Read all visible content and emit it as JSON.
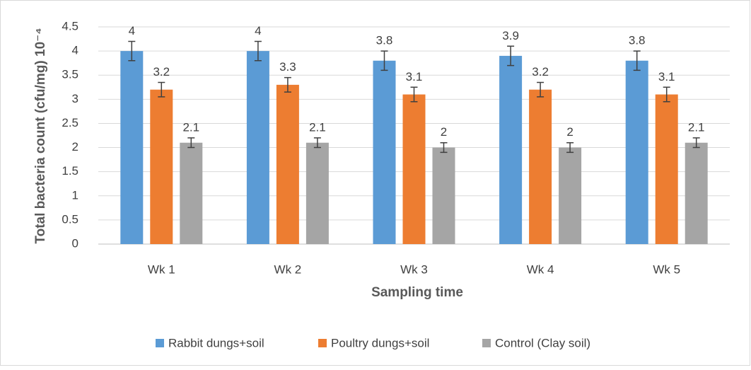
{
  "chart_data": {
    "type": "bar",
    "y_label": "Total bacteria count (cfu/mg) 10⁻⁴",
    "x_label": "Sampling time",
    "categories": [
      "Wk 1",
      "Wk 2",
      "Wk 3",
      "Wk 4",
      "Wk 5"
    ],
    "series": [
      {
        "name": "Rabbit dungs+soil",
        "color": "#5b9bd5",
        "values": [
          4,
          4,
          3.8,
          3.9,
          3.8
        ],
        "errors": [
          0.2,
          0.2,
          0.2,
          0.2,
          0.2
        ]
      },
      {
        "name": "Poultry dungs+soil",
        "color": "#ed7d31",
        "values": [
          3.2,
          3.3,
          3.1,
          3.2,
          3.1
        ],
        "errors": [
          0.15,
          0.15,
          0.15,
          0.15,
          0.15
        ]
      },
      {
        "name": "Control (Clay soil)",
        "color": "#a5a5a5",
        "values": [
          2.1,
          2.1,
          2,
          2,
          2.1
        ],
        "errors": [
          0.1,
          0.1,
          0.1,
          0.1,
          0.1
        ]
      }
    ],
    "ylim": [
      0,
      4.5
    ],
    "yticks": [
      0,
      0.5,
      1,
      1.5,
      2,
      2.5,
      3,
      3.5,
      4,
      4.5
    ],
    "grid": true,
    "legend": "bottom"
  }
}
